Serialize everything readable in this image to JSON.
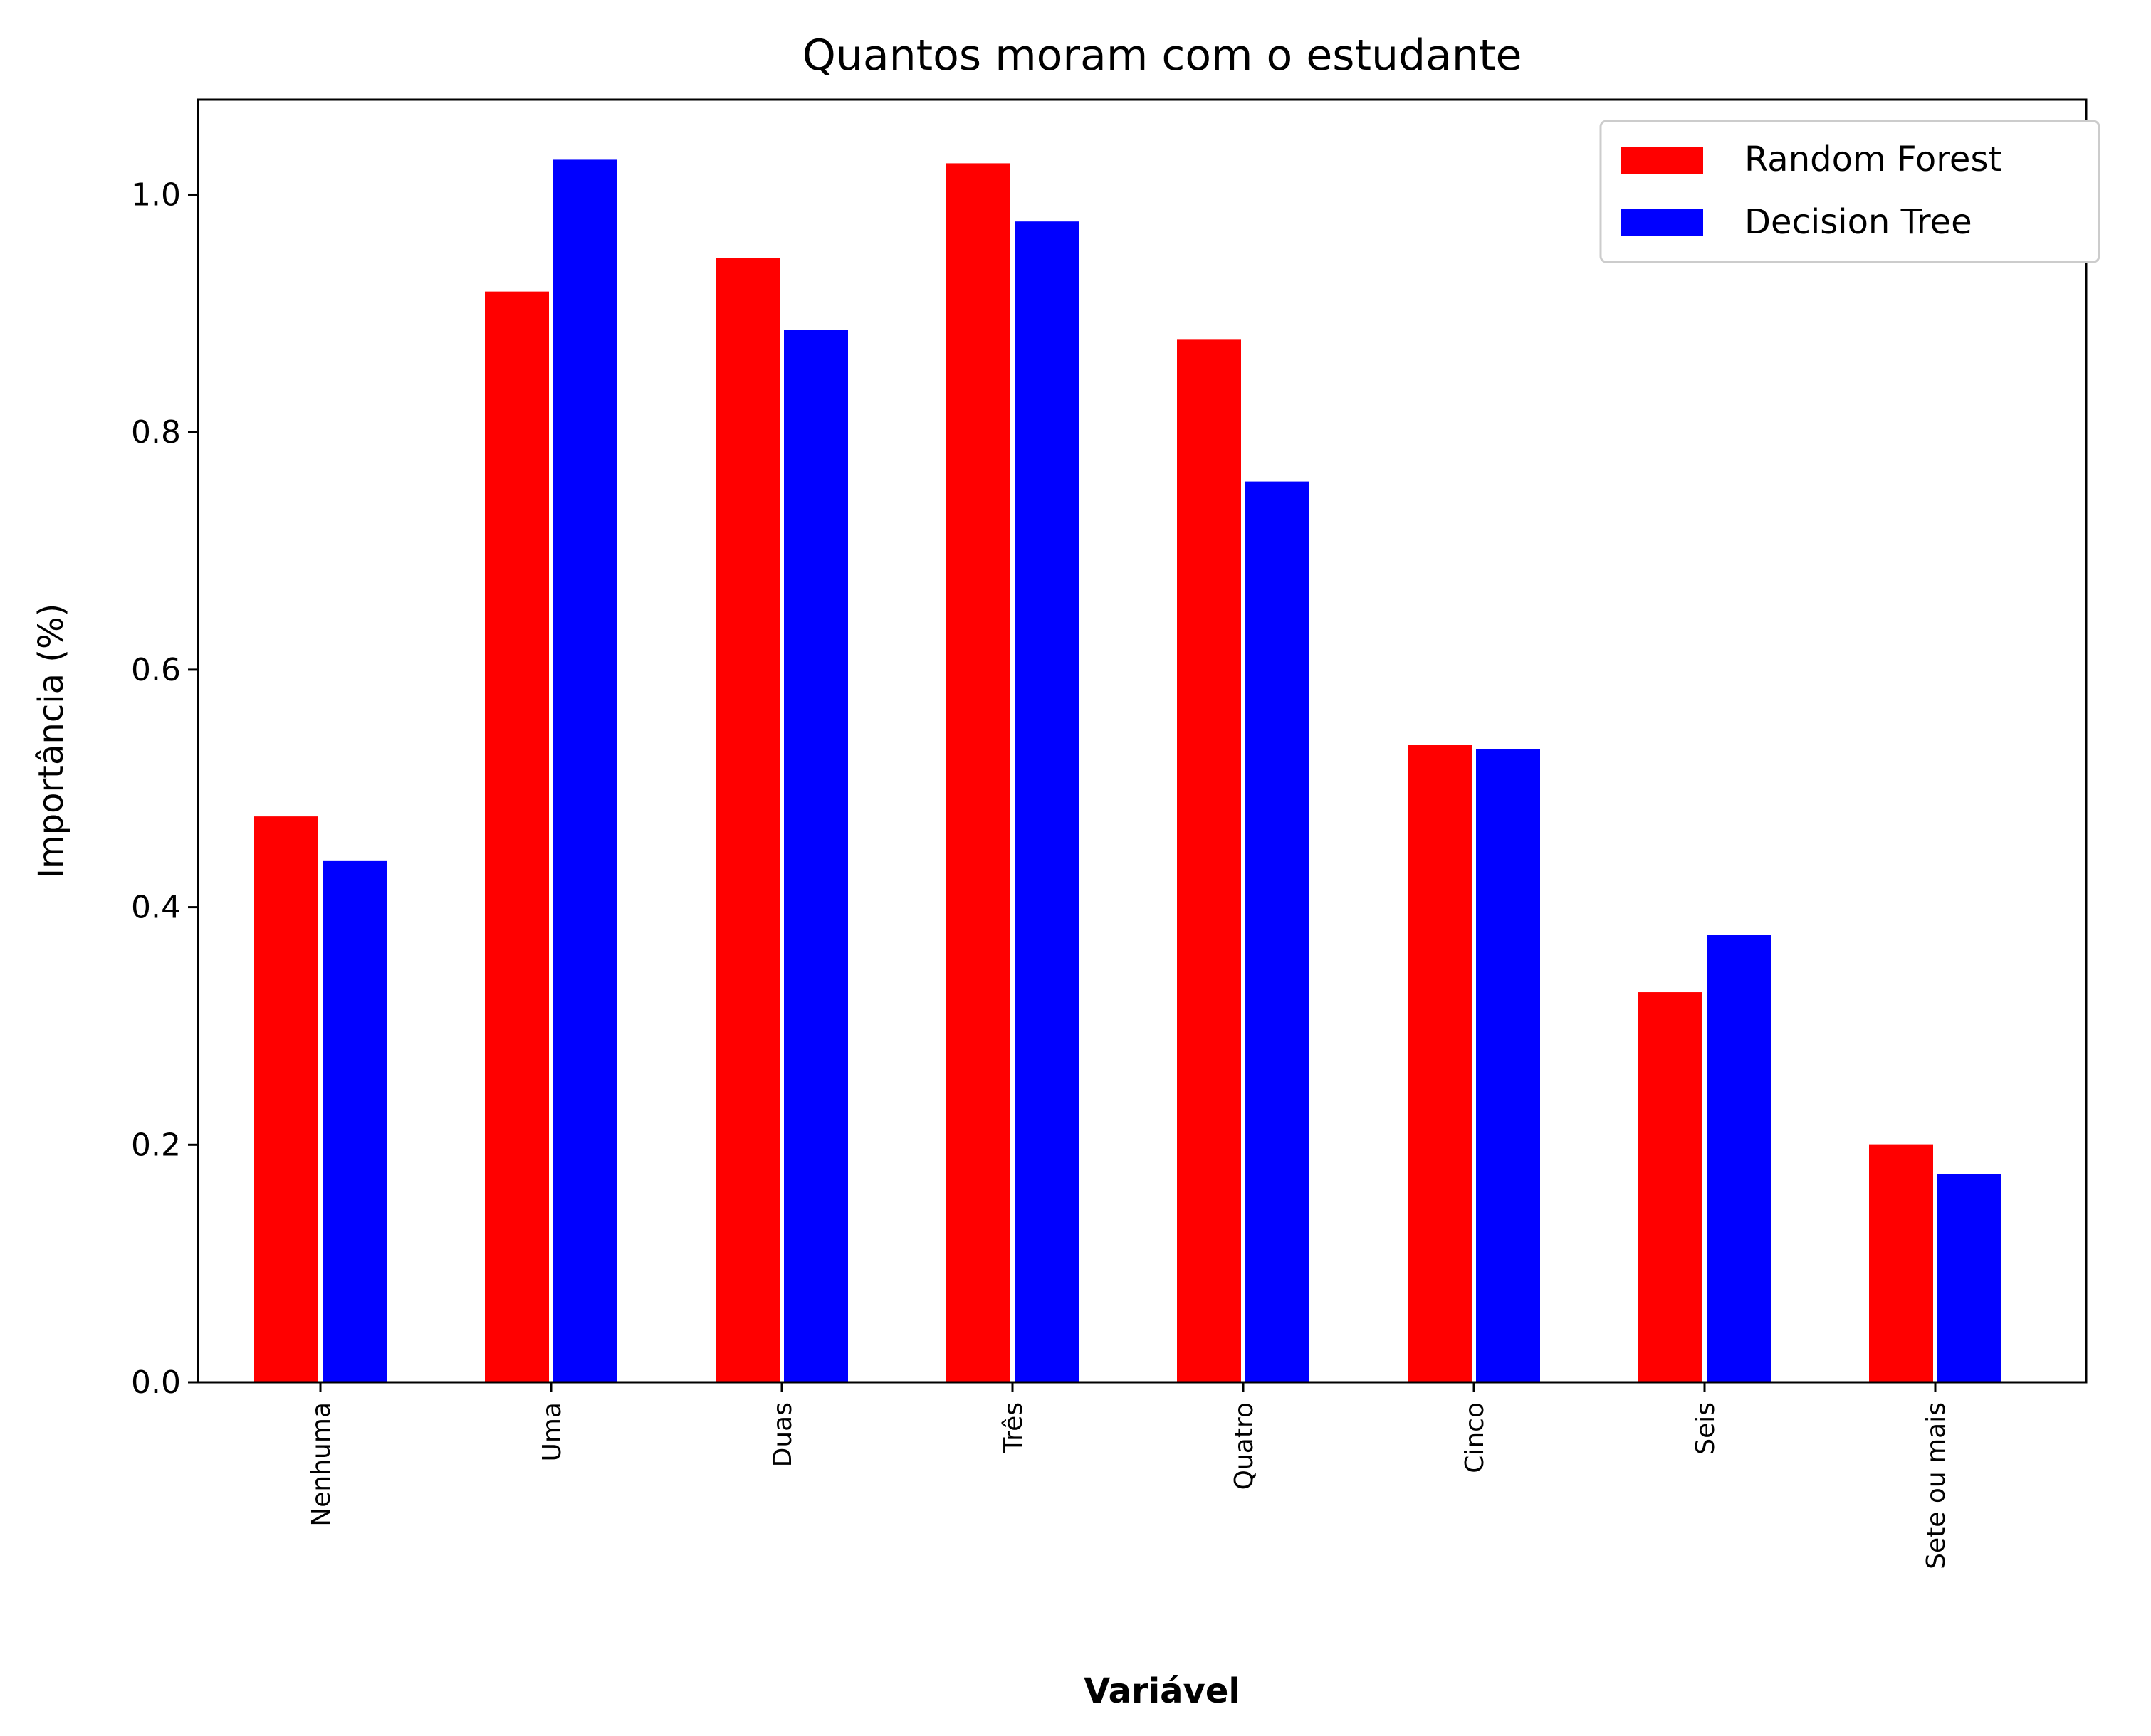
{
  "chart_data": {
    "type": "bar",
    "title": "Quantos moram com o estudante",
    "xlabel": "Variável",
    "ylabel": "Importância (%)",
    "categories": [
      "Nenhuma",
      "Uma",
      "Duas",
      "Três",
      "Quatro",
      "Cinco",
      "Seis",
      "Sete ou mais"
    ],
    "series": [
      {
        "name": "Random Forest",
        "color": "#ff0000",
        "values": [
          0.477,
          0.919,
          0.947,
          1.027,
          0.879,
          0.537,
          0.329,
          0.201
        ]
      },
      {
        "name": "Decision Tree",
        "color": "#0000ff",
        "values": [
          0.44,
          1.03,
          0.887,
          0.978,
          0.759,
          0.534,
          0.377,
          0.176
        ]
      }
    ],
    "ylim": [
      0,
      1.08
    ],
    "yticks": [
      0.0,
      0.2,
      0.4,
      0.6,
      0.8,
      1.0
    ],
    "ytick_labels": [
      "0.0",
      "0.2",
      "0.4",
      "0.6",
      "0.8",
      "1.0"
    ],
    "grid": false,
    "legend_position": "top-right"
  }
}
